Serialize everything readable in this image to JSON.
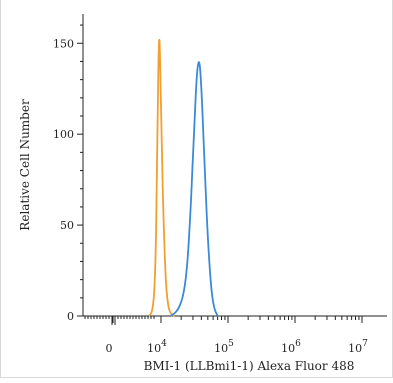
{
  "chart_data": {
    "type": "histogram",
    "title": "",
    "xlabel": "BMI-1 (LLBmi1-1) Alexa Fluor 488",
    "ylabel": "Relative Cell Number",
    "x_scale": "biexponential",
    "x_ticks": [
      {
        "value": 0,
        "base": "0",
        "exp": ""
      },
      {
        "value": 10000,
        "base": "10",
        "exp": "4"
      },
      {
        "value": 100000,
        "base": "10",
        "exp": "5"
      },
      {
        "value": 1000000,
        "base": "10",
        "exp": "6"
      },
      {
        "value": 10000000,
        "base": "10",
        "exp": "7"
      }
    ],
    "ylim": [
      0,
      165
    ],
    "y_ticks": [
      0,
      50,
      100,
      150
    ],
    "grid": false,
    "legend": "none",
    "series": [
      {
        "color": "#f0a030",
        "points": [
          [
            5000,
            0
          ],
          [
            6000,
            2
          ],
          [
            6800,
            12
          ],
          [
            7400,
            35
          ],
          [
            7900,
            75
          ],
          [
            8300,
            115
          ],
          [
            8700,
            145
          ],
          [
            9000,
            153
          ],
          [
            9300,
            150
          ],
          [
            9700,
            130
          ],
          [
            10300,
            90
          ],
          [
            11000,
            48
          ],
          [
            11800,
            18
          ],
          [
            12800,
            5
          ],
          [
            14000,
            1
          ],
          [
            16000,
            0
          ]
        ]
      },
      {
        "color": "#3a8ad8",
        "points": [
          [
            14000,
            0
          ],
          [
            18000,
            3
          ],
          [
            22000,
            12
          ],
          [
            25000,
            30
          ],
          [
            28000,
            62
          ],
          [
            31000,
            100
          ],
          [
            34000,
            132
          ],
          [
            36500,
            141
          ],
          [
            38500,
            137
          ],
          [
            41000,
            118
          ],
          [
            45000,
            80
          ],
          [
            50000,
            42
          ],
          [
            56000,
            15
          ],
          [
            62000,
            4
          ],
          [
            70000,
            0
          ]
        ]
      }
    ]
  }
}
